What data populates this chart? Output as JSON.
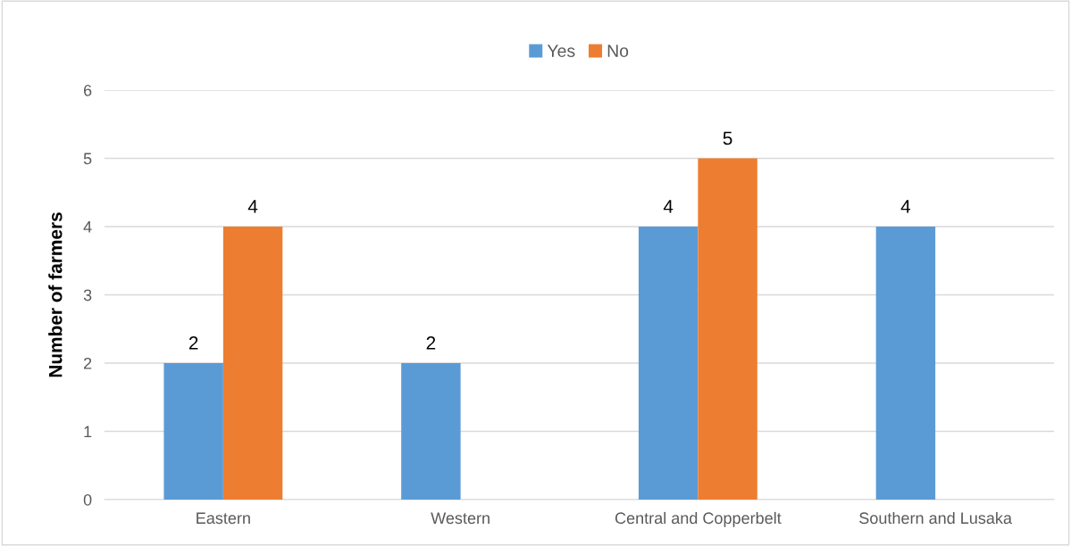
{
  "chart_data": {
    "type": "bar",
    "ylabel": "Number of farmers",
    "categories": [
      "Eastern",
      "Western",
      "Central and Copperbelt",
      "Southern and Lusaka"
    ],
    "series": [
      {
        "name": "Yes",
        "color": "#5b9bd5",
        "values": [
          2,
          2,
          4,
          4
        ]
      },
      {
        "name": "No",
        "color": "#ed7d31",
        "values": [
          4,
          null,
          5,
          null
        ]
      }
    ],
    "ylim": [
      0,
      6
    ],
    "yticks": [
      0,
      1,
      2,
      3,
      4,
      5,
      6
    ],
    "grid": "y",
    "legend": "top",
    "data_labels": true
  }
}
